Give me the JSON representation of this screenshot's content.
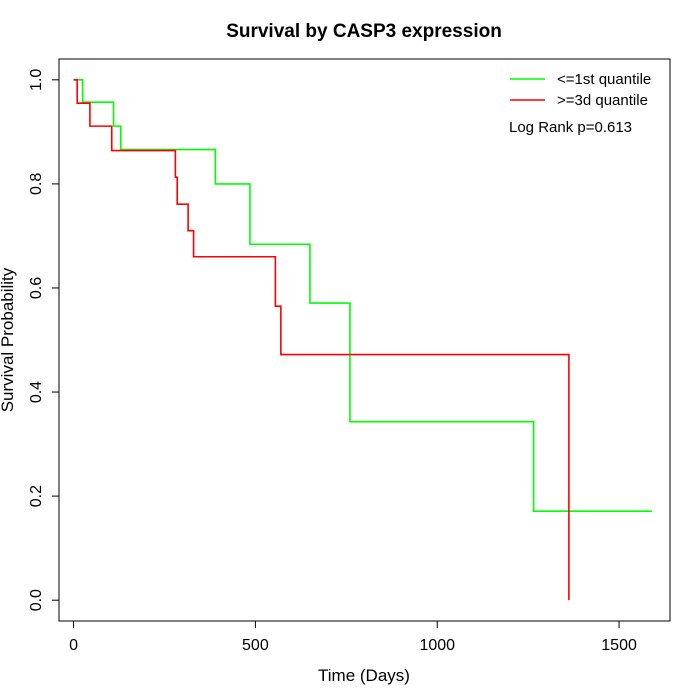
{
  "chart_data": {
    "type": "line",
    "title": "Survival by CASP3 expression",
    "xlabel": "Time (Days)",
    "ylabel": "Survival Probability",
    "xlim": [
      -40,
      1640
    ],
    "ylim": [
      -0.04,
      1.04
    ],
    "x_ticks": [
      0,
      500,
      1000,
      1500
    ],
    "x_tick_labels": [
      "0",
      "500",
      "1000",
      "1500"
    ],
    "y_ticks": [
      0.0,
      0.2,
      0.4,
      0.6,
      0.8,
      1.0
    ],
    "y_tick_labels": [
      "0.0",
      "0.2",
      "0.4",
      "0.6",
      "0.8",
      "1.0"
    ],
    "grid": false,
    "legend_position": "top-right",
    "annotation": "Log Rank p=0.613",
    "series": [
      {
        "name": "<=1st quantile",
        "color": "#00ff00",
        "steps": [
          [
            0,
            1.0
          ],
          [
            25,
            0.957
          ],
          [
            110,
            0.911
          ],
          [
            130,
            0.866
          ],
          [
            390,
            0.8
          ],
          [
            485,
            0.684
          ],
          [
            650,
            0.571
          ],
          [
            760,
            0.343
          ],
          [
            1265,
            0.171
          ],
          [
            1590,
            0.171
          ]
        ]
      },
      {
        "name": ">=3d quantile",
        "color": "#ff0000",
        "steps": [
          [
            0,
            1.0
          ],
          [
            10,
            0.955
          ],
          [
            45,
            0.911
          ],
          [
            105,
            0.864
          ],
          [
            280,
            0.813
          ],
          [
            285,
            0.761
          ],
          [
            315,
            0.71
          ],
          [
            330,
            0.66
          ],
          [
            555,
            0.565
          ],
          [
            570,
            0.472
          ],
          [
            1360,
            0.472
          ],
          [
            1362,
            0.0
          ]
        ]
      }
    ]
  }
}
